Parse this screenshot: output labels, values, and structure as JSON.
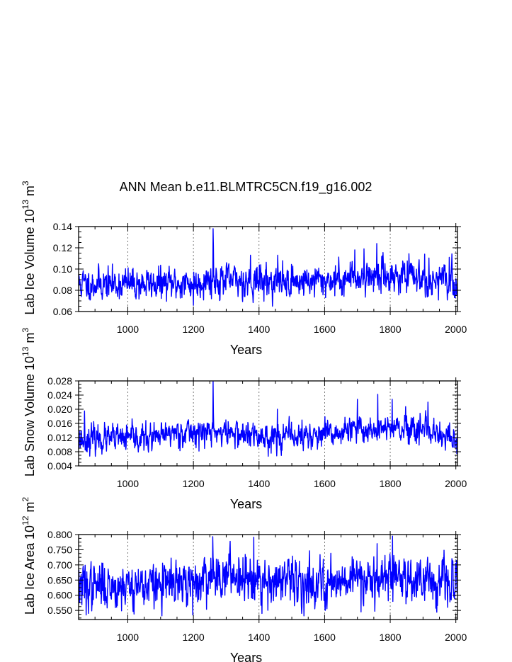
{
  "figure_title": "ANN Mean b.e11.BLMTRC5CN.f19_g16.002",
  "chart_data": [
    {
      "type": "line",
      "id": "ice-volume",
      "ylabel": {
        "main": "Lab Ice Volume 10",
        "exp": "13",
        "unit": " m",
        "unit_exp": "3"
      },
      "xlabel": "Years",
      "xlim": [
        850,
        2005
      ],
      "ylim": [
        0.06,
        0.14
      ],
      "xticks": [
        1000,
        1200,
        1400,
        1600,
        1800,
        2000
      ],
      "xtick_labels": [
        "1000",
        "1200",
        "1400",
        "1600",
        "1800",
        "2000"
      ],
      "yticks": [
        0.06,
        0.08,
        0.1,
        0.12,
        0.14
      ],
      "ytick_labels": [
        "0.06",
        "0.08",
        "0.10",
        "0.12",
        "0.14"
      ],
      "grid": "x-dashed",
      "line_color": "#0000ff",
      "series": {
        "name": "Lab Ice Volume",
        "x_start": 850,
        "x_step": 1,
        "count": 1156,
        "base": 0.087,
        "noise": 0.007,
        "seed": 11,
        "trend": [
          [
            850,
            0.086
          ],
          [
            1200,
            0.086
          ],
          [
            1250,
            0.091
          ],
          [
            1300,
            0.089
          ],
          [
            1500,
            0.088
          ],
          [
            1650,
            0.09
          ],
          [
            1700,
            0.093
          ],
          [
            1800,
            0.094
          ],
          [
            1900,
            0.092
          ],
          [
            2005,
            0.086
          ]
        ],
        "spikes": [
          [
            1260,
            0.138
          ],
          [
            1261,
            0.121
          ],
          [
            1759,
            0.124
          ],
          [
            1905,
            0.114
          ],
          [
            1980,
            0.111
          ],
          [
            1374,
            0.113
          ],
          [
            1457,
            0.113
          ],
          [
            1692,
            0.118
          ],
          [
            1720,
            0.119
          ],
          [
            1200,
            0.066
          ]
        ],
        "clip": [
          0.065,
          0.139
        ]
      }
    },
    {
      "type": "line",
      "id": "snow-volume",
      "ylabel": {
        "main": "Lab Snow Volume 10",
        "exp": "13",
        "unit": " m",
        "unit_exp": "3"
      },
      "xlabel": "Years",
      "xlim": [
        850,
        2005
      ],
      "ylim": [
        0.004,
        0.028
      ],
      "xticks": [
        1000,
        1200,
        1400,
        1600,
        1800,
        2000
      ],
      "xtick_labels": [
        "1000",
        "1200",
        "1400",
        "1600",
        "1800",
        "2000"
      ],
      "yticks": [
        0.004,
        0.008,
        0.012,
        0.016,
        0.02,
        0.024,
        0.028
      ],
      "ytick_labels": [
        "0.004",
        "0.008",
        "0.012",
        "0.016",
        "0.020",
        "0.024",
        "0.028"
      ],
      "grid": "x-dashed",
      "line_color": "#0000ff",
      "series": {
        "name": "Lab Snow Volume",
        "x_start": 850,
        "x_step": 1,
        "count": 1156,
        "base": 0.0125,
        "noise": 0.0018,
        "seed": 23,
        "trend": [
          [
            850,
            0.0115
          ],
          [
            1100,
            0.0118
          ],
          [
            1130,
            0.0135
          ],
          [
            1300,
            0.0135
          ],
          [
            1400,
            0.0122
          ],
          [
            1600,
            0.0125
          ],
          [
            1700,
            0.0142
          ],
          [
            1800,
            0.0145
          ],
          [
            1900,
            0.0135
          ],
          [
            2005,
            0.011
          ]
        ],
        "spikes": [
          [
            1260,
            0.0278
          ],
          [
            1261,
            0.019
          ],
          [
            1762,
            0.0242
          ],
          [
            1806,
            0.0228
          ],
          [
            1915,
            0.022
          ],
          [
            1700,
            0.0228
          ],
          [
            868,
            0.0195
          ],
          [
            1456,
            0.02
          ],
          [
            2003,
            0.0075
          ]
        ],
        "clip": [
          0.0066,
          0.0279
        ]
      }
    },
    {
      "type": "line",
      "id": "ice-area",
      "ylabel": {
        "main": "Lab Ice Area 10",
        "exp": "12",
        "unit": " m",
        "unit_exp": "2"
      },
      "xlabel": "Years",
      "xlim": [
        850,
        2005
      ],
      "ylim": [
        0.52,
        0.8
      ],
      "xticks": [
        1000,
        1200,
        1400,
        1600,
        1800,
        2000
      ],
      "xtick_labels": [
        "1000",
        "1200",
        "1400",
        "1600",
        "1800",
        "2000"
      ],
      "yticks": [
        0.55,
        0.6,
        0.65,
        0.7,
        0.75,
        0.8
      ],
      "ytick_labels": [
        "0.550",
        "0.600",
        "0.650",
        "0.700",
        "0.750",
        "0.800"
      ],
      "grid": "x-dashed",
      "line_color": "#0000ff",
      "series": {
        "name": "Lab Ice Area",
        "x_start": 850,
        "x_step": 1,
        "count": 1156,
        "base": 0.64,
        "noise": 0.035,
        "seed": 37,
        "trend": [
          [
            850,
            0.63
          ],
          [
            1200,
            0.635
          ],
          [
            1250,
            0.665
          ],
          [
            1350,
            0.67
          ],
          [
            1450,
            0.645
          ],
          [
            1600,
            0.64
          ],
          [
            1700,
            0.665
          ],
          [
            1850,
            0.66
          ],
          [
            2005,
            0.635
          ]
        ],
        "spikes": [
          [
            1259,
            0.793
          ],
          [
            1384,
            0.791
          ],
          [
            1807,
            0.795
          ],
          [
            1760,
            0.77
          ],
          [
            1198,
            0.535
          ],
          [
            1409,
            0.54
          ],
          [
            873,
            0.535
          ],
          [
            1711,
            0.545
          ],
          [
            1975,
            0.56
          ]
        ],
        "clip": [
          0.532,
          0.796
        ]
      }
    }
  ]
}
